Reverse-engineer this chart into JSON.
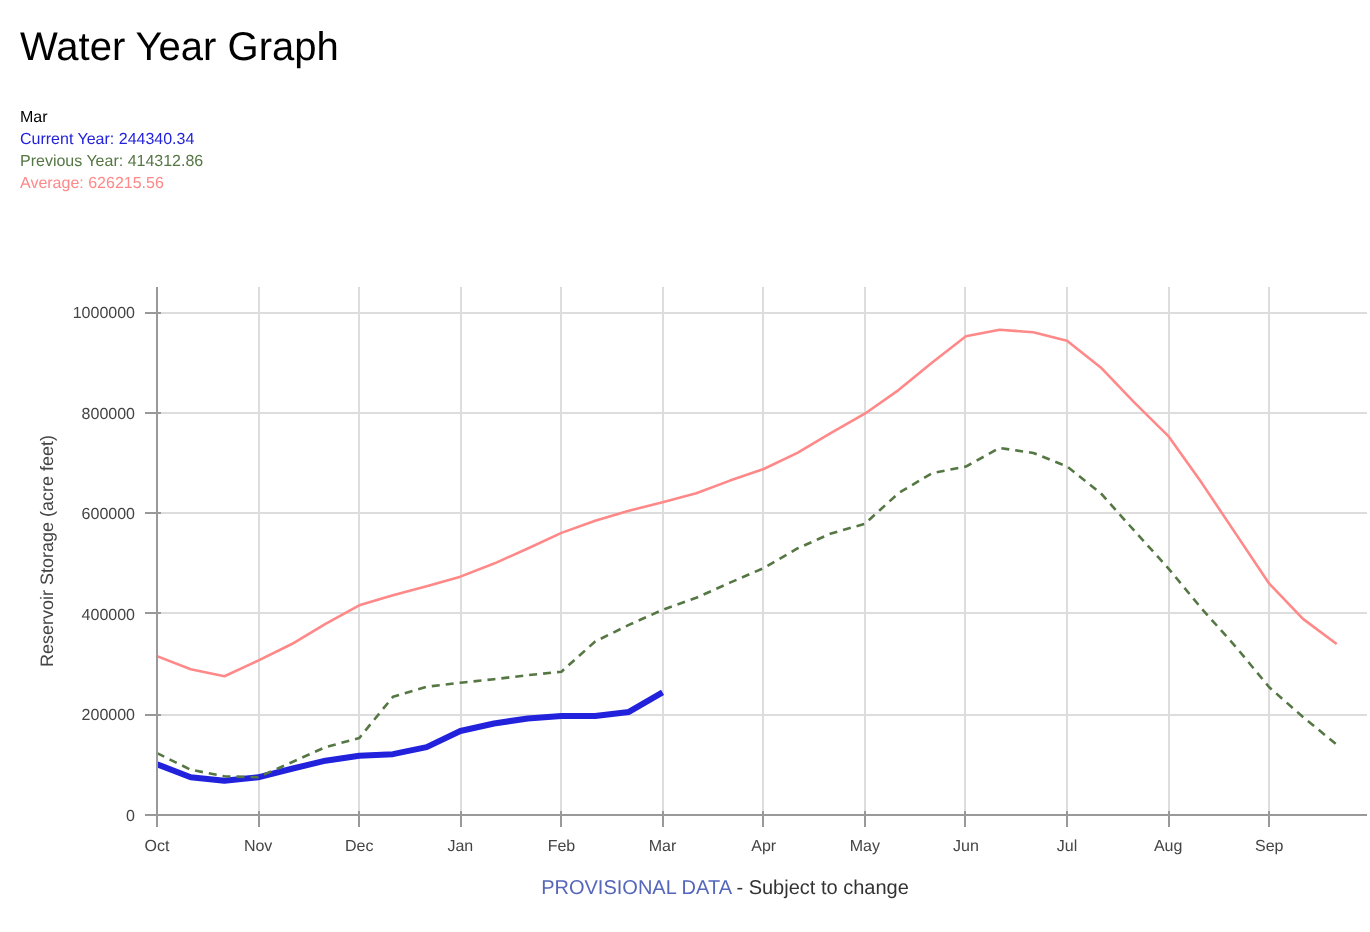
{
  "chart_data": {
    "type": "line",
    "title": "Water Year Graph",
    "legend_title": "Mar",
    "ylabel": "Reservoir Storage (acre feet)",
    "annotations": [
      "PROVISIONAL DATA",
      "- Subject to change"
    ],
    "categories": [
      "Oct",
      null,
      null,
      "Nov",
      null,
      null,
      "Dec",
      null,
      null,
      "Jan",
      null,
      null,
      "Feb",
      null,
      null,
      "Mar",
      null,
      null,
      "Apr",
      null,
      null,
      "May",
      null,
      null,
      "Jun",
      null,
      null,
      "Jul",
      null,
      null,
      "Aug",
      null,
      null,
      "Sep",
      null,
      null
    ],
    "ylim": [
      0,
      1050000
    ],
    "yticks": [
      0,
      200000,
      400000,
      600000,
      800000,
      1000000
    ],
    "grid": true,
    "legend": "top left",
    "series": [
      {
        "name": "Current Year: 244340.34",
        "color": "#2222dd",
        "line_style": "solid",
        "values": [
          101000,
          75000,
          68000,
          75000,
          92000,
          108000,
          118000,
          121000,
          135000,
          167000,
          182000,
          192000,
          197000,
          197000,
          205000,
          244000,
          null,
          null,
          null,
          null,
          null,
          null,
          null,
          null,
          null,
          null,
          null,
          null,
          null,
          null,
          null,
          null,
          null,
          null,
          null,
          null
        ]
      },
      {
        "name": "Previous Year: 414312.86",
        "color": "#557744",
        "line_style": "dashed",
        "values": [
          123000,
          90000,
          77000,
          75000,
          105000,
          135000,
          153000,
          235000,
          255000,
          263000,
          270000,
          278000,
          285000,
          345000,
          378000,
          408000,
          432000,
          462000,
          491000,
          530000,
          560000,
          579000,
          640000,
          680000,
          693000,
          730000,
          720000,
          693000,
          640000,
          565000,
          491000,
          410000,
          335000,
          254000,
          195000,
          140000
        ]
      },
      {
        "name": "Average: 626215.56",
        "color": "#ff8888",
        "line_style": "solid",
        "values": [
          316000,
          290000,
          276000,
          307000,
          340000,
          380000,
          417000,
          437000,
          455000,
          474000,
          500000,
          530000,
          561000,
          585000,
          605000,
          622000,
          640000,
          665000,
          688000,
          720000,
          760000,
          798000,
          845000,
          900000,
          952000,
          965000,
          960000,
          943000,
          890000,
          820000,
          754000,
          660000,
          560000,
          460000,
          390000,
          340000
        ]
      }
    ]
  }
}
